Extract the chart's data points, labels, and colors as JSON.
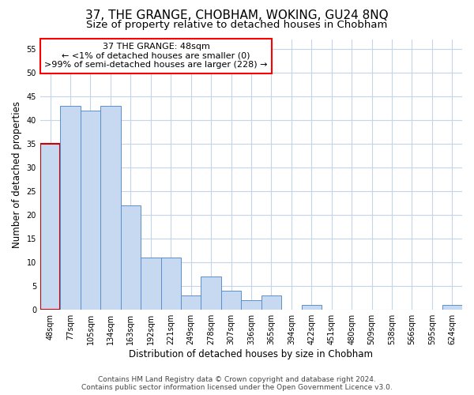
{
  "title": "37, THE GRANGE, CHOBHAM, WOKING, GU24 8NQ",
  "subtitle": "Size of property relative to detached houses in Chobham",
  "xlabel": "Distribution of detached houses by size in Chobham",
  "ylabel": "Number of detached properties",
  "bin_labels": [
    "48sqm",
    "77sqm",
    "105sqm",
    "134sqm",
    "163sqm",
    "192sqm",
    "221sqm",
    "249sqm",
    "278sqm",
    "307sqm",
    "336sqm",
    "365sqm",
    "394sqm",
    "422sqm",
    "451sqm",
    "480sqm",
    "509sqm",
    "538sqm",
    "566sqm",
    "595sqm",
    "624sqm"
  ],
  "bar_heights": [
    35,
    43,
    42,
    43,
    22,
    11,
    11,
    3,
    7,
    4,
    2,
    3,
    0,
    1,
    0,
    0,
    0,
    0,
    0,
    0,
    1
  ],
  "bar_color": "#c6d9f0",
  "bar_edge_color": "#5b8fcc",
  "highlight_bar_index": 0,
  "highlight_bar_edge_color": "#cc0000",
  "annotation_box_text": "37 THE GRANGE: 48sqm\n← <1% of detached houses are smaller (0)\n>99% of semi-detached houses are larger (228) →",
  "ylim": [
    0,
    57
  ],
  "yticks": [
    0,
    5,
    10,
    15,
    20,
    25,
    30,
    35,
    40,
    45,
    50,
    55
  ],
  "footer_line1": "Contains HM Land Registry data © Crown copyright and database right 2024.",
  "footer_line2": "Contains public sector information licensed under the Open Government Licence v3.0.",
  "bg_color": "#ffffff",
  "grid_color": "#c5d5e8",
  "title_fontsize": 11,
  "subtitle_fontsize": 9.5,
  "axis_label_fontsize": 8.5,
  "tick_fontsize": 7,
  "ann_fontsize": 8,
  "footer_fontsize": 6.5
}
